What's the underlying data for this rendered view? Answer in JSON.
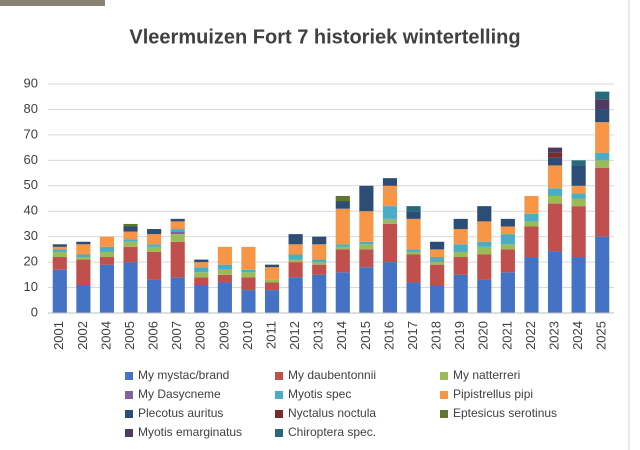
{
  "chart_data": {
    "type": "stacked_bar",
    "title": "Vleermuizen Fort 7 historiek wintertelling",
    "categories": [
      "2001",
      "2002",
      "2004",
      "2005",
      "2006",
      "2007",
      "2008",
      "2009",
      "2010",
      "2011",
      "2012",
      "2013",
      "2014",
      "2015",
      "2016",
      "2017",
      "2018",
      "2019",
      "2020",
      "2021",
      "2022",
      "2023",
      "2024",
      "2025"
    ],
    "ylim": [
      0,
      90
    ],
    "yticks": [
      0,
      10,
      20,
      30,
      40,
      50,
      60,
      70,
      80,
      90
    ],
    "grid": true,
    "series": [
      {
        "name": "My mystac/brand",
        "color": "#4472c4",
        "values": [
          17,
          11,
          19,
          20,
          13,
          14,
          11,
          12,
          9,
          9,
          14,
          15,
          16,
          18,
          20,
          12,
          11,
          15,
          13,
          16,
          22,
          24,
          22,
          30
        ]
      },
      {
        "name": "My daubentonnii",
        "color": "#c0504d",
        "values": [
          5,
          10,
          3,
          6,
          11,
          14,
          3,
          3,
          5,
          3,
          6,
          4,
          9,
          7,
          15,
          11,
          8,
          7,
          10,
          9,
          12,
          19,
          20,
          27
        ]
      },
      {
        "name": "My natterreri",
        "color": "#9bbb59",
        "values": [
          2,
          1,
          2,
          2,
          2,
          3,
          2,
          2,
          2,
          1,
          1,
          1,
          1,
          2,
          2,
          1,
          1,
          2,
          3,
          2,
          2,
          3,
          3,
          3
        ]
      },
      {
        "name": "My Dasycneme",
        "color": "#8064a2",
        "values": [
          0,
          0,
          0,
          0,
          0,
          1,
          0,
          0,
          0,
          0,
          0,
          0,
          0,
          0,
          0,
          0,
          0,
          0,
          0,
          0,
          0,
          0,
          0,
          0
        ]
      },
      {
        "name": "Myotis spec",
        "color": "#4bacc6",
        "values": [
          1,
          1,
          2,
          1,
          1,
          1,
          2,
          2,
          1,
          0,
          2,
          1,
          1,
          1,
          5,
          1,
          2,
          3,
          2,
          4,
          3,
          3,
          2,
          3
        ]
      },
      {
        "name": "Pipistrellus pipi",
        "color": "#f79646",
        "values": [
          1,
          4,
          4,
          3,
          4,
          3,
          2,
          7,
          9,
          5,
          4,
          6,
          14,
          12,
          8,
          12,
          3,
          6,
          8,
          3,
          7,
          9,
          3,
          12
        ]
      },
      {
        "name": "Plecotus auritus",
        "color": "#2c4d75",
        "values": [
          1,
          1,
          0,
          2,
          2,
          1,
          1,
          0,
          0,
          1,
          4,
          3,
          3,
          10,
          3,
          3,
          3,
          4,
          6,
          3,
          0,
          3,
          8,
          5
        ]
      },
      {
        "name": "Nyctalus noctula",
        "color": "#772c2a",
        "values": [
          0,
          0,
          0,
          0,
          0,
          0,
          0,
          0,
          0,
          0,
          0,
          0,
          0,
          0,
          0,
          0,
          0,
          0,
          0,
          0,
          0,
          2,
          0,
          0
        ]
      },
      {
        "name": "Eptesicus serotinus",
        "color": "#5f7530",
        "values": [
          0,
          0,
          0,
          1,
          0,
          0,
          0,
          0,
          0,
          0,
          0,
          0,
          2,
          0,
          0,
          0,
          0,
          0,
          0,
          0,
          0,
          0,
          0,
          0
        ]
      },
      {
        "name": "Myotis emarginatus",
        "color": "#4d3b62",
        "values": [
          0,
          0,
          0,
          0,
          0,
          0,
          0,
          0,
          0,
          0,
          0,
          0,
          0,
          0,
          0,
          0,
          0,
          0,
          0,
          0,
          0,
          2,
          0,
          4
        ]
      },
      {
        "name": "Chiroptera spec.",
        "color": "#276a7c",
        "values": [
          0,
          0,
          0,
          0,
          0,
          0,
          0,
          0,
          0,
          0,
          0,
          0,
          0,
          0,
          0,
          2,
          0,
          0,
          0,
          0,
          0,
          0,
          2,
          3
        ]
      }
    ]
  }
}
